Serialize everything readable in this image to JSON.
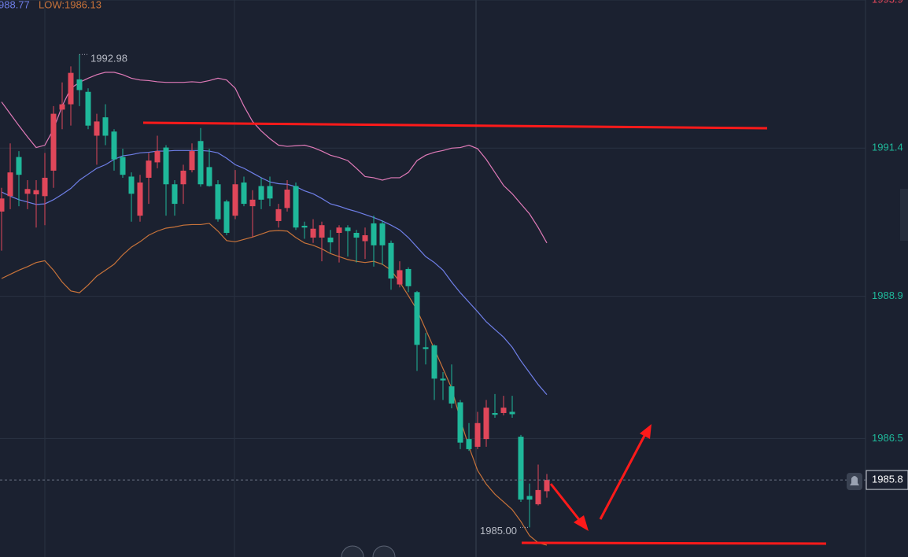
{
  "chart_data": {
    "type": "candlestick",
    "open": [
      1990.33,
      1990.59,
      1991.25,
      1990.63,
      1990.62,
      1990.59,
      1991.02,
      1992.05,
      1992.14,
      1992.56,
      1992.35,
      1991.61,
      1991.92,
      1991.68,
      1991.25,
      1990.92,
      1990.26,
      1990.9,
      1991.16,
      1991.41,
      1990.79,
      1990.79,
      1991.03,
      1991.52,
      1991.08,
      1990.79,
      1990.5,
      1990.26,
      1990.82,
      1990.42,
      1990.76,
      1990.76,
      1990.17,
      1990.39,
      1990.76,
      1990.09,
      1989.89,
      1989.89,
      1989.89,
      1989.97,
      1990.06,
      1989.97,
      1989.83,
      1990.13,
      1990.13,
      1989.8,
      1989.1,
      1989.36,
      1988.97,
      1988.04,
      1988.07,
      1987.51,
      1987.38,
      1987.11,
      1986.49,
      1986.36,
      1986.49,
      1986.93,
      1986.93,
      1986.95,
      1986.53,
      1985.53,
      1985.39,
      1985.61
    ],
    "high": [
      1990.73,
      1991.48,
      1991.35,
      1990.86,
      1990.86,
      1991.32,
      1992.11,
      1992.51,
      1992.78,
      1992.98,
      1992.41,
      1991.98,
      1992.14,
      1991.72,
      1991.39,
      1990.99,
      1990.95,
      1991.32,
      1991.61,
      1991.45,
      1990.86,
      1991.12,
      1991.48,
      1991.74,
      1991.39,
      1990.86,
      1990.53,
      1991.03,
      1990.92,
      1990.69,
      1990.9,
      1990.92,
      1990.46,
      1990.86,
      1990.82,
      1990.16,
      1990.2,
      1990.16,
      1990.02,
      1990.1,
      1990.1,
      1990.02,
      1990.06,
      1990.26,
      1990.18,
      1989.84,
      1989.49,
      1989.39,
      1988.99,
      1988.28,
      1988.09,
      1987.62,
      1987.75,
      1987.15,
      1986.76,
      1986.95,
      1987.15,
      1987.25,
      1987.22,
      1987.22,
      1986.56,
      1985.74,
      1986.06,
      1985.9
    ],
    "low": [
      1989.67,
      1990.37,
      1990.42,
      1990.37,
      1990.06,
      1990.1,
      1990.73,
      1991.72,
      1991.78,
      1992.11,
      1991.72,
      1991.12,
      1991.45,
      1991.02,
      1990.9,
      1990.16,
      1990.16,
      1990.46,
      1991.06,
      1990.26,
      1990.26,
      1990.46,
      1990.99,
      1990.75,
      1990.75,
      1990.16,
      1989.93,
      1990.2,
      1990.42,
      1989.89,
      1990.37,
      1990.42,
      1990.06,
      1990.33,
      1990.02,
      1989.87,
      1989.8,
      1989.49,
      1989.63,
      1989.47,
      1989.57,
      1989.47,
      1989.53,
      1989.4,
      1989.43,
      1989.01,
      1989.05,
      1988.97,
      1987.64,
      1987.75,
      1987.15,
      1987.15,
      1987.01,
      1986.32,
      1986.29,
      1986.32,
      1986.36,
      1986.85,
      1986.89,
      1986.85,
      1985.43,
      1985.0,
      1985.37,
      1985.5
    ],
    "close": [
      1990.55,
      1990.99,
      1990.95,
      1990.71,
      1990.69,
      1990.9,
      1991.98,
      1992.14,
      1992.67,
      1992.38,
      1991.78,
      1991.85,
      1991.61,
      1991.21,
      1990.95,
      1990.63,
      1990.82,
      1991.19,
      1991.35,
      1990.79,
      1990.46,
      1991.02,
      1991.35,
      1990.79,
      1990.76,
      1990.2,
      1989.97,
      1990.79,
      1990.46,
      1990.53,
      1990.53,
      1990.55,
      1990.37,
      1990.7,
      1990.06,
      1990.06,
      1990.04,
      1990.1,
      1989.81,
      1990.06,
      1990.0,
      1989.89,
      1989.93,
      1989.76,
      1989.76,
      1989.2,
      1989.34,
      1989.07,
      1988.08,
      1988.01,
      1987.51,
      1987.48,
      1987.09,
      1986.43,
      1986.32,
      1986.76,
      1987.02,
      1986.9,
      1987.02,
      1986.91,
      1985.47,
      1985.47,
      1985.63,
      1985.8
    ],
    "up_color": "#e0475a",
    "down_color": "#1fb89a",
    "bands": [
      {
        "color": "#e07ab8",
        "values": [
          1992.18,
          1991.98,
          1991.78,
          1991.59,
          1991.41,
          1991.45,
          1991.72,
          1992.11,
          1992.41,
          1992.51,
          1992.58,
          1992.64,
          1992.68,
          1992.68,
          1992.64,
          1992.58,
          1992.55,
          1992.54,
          1992.52,
          1992.51,
          1992.51,
          1992.51,
          1992.52,
          1992.51,
          1992.54,
          1992.58,
          1992.55,
          1992.41,
          1992.11,
          1991.85,
          1991.69,
          1991.56,
          1991.45,
          1991.43,
          1991.44,
          1991.45,
          1991.41,
          1991.35,
          1991.28,
          1991.24,
          1991.19,
          1991.06,
          1990.92,
          1990.9,
          1990.86,
          1990.9,
          1990.9,
          1990.99,
          1991.19,
          1991.28,
          1991.33,
          1991.36,
          1991.4,
          1991.41,
          1991.45,
          1991.39,
          1991.21,
          1990.99,
          1990.77,
          1990.63,
          1990.46,
          1990.29,
          1990.06,
          1989.8
        ]
      },
      {
        "color": "#6f7fe8",
        "values": [
          1990.66,
          1990.59,
          1990.53,
          1990.49,
          1990.45,
          1990.46,
          1990.53,
          1990.62,
          1990.72,
          1990.86,
          1990.96,
          1991.06,
          1991.12,
          1991.21,
          1991.27,
          1991.29,
          1991.32,
          1991.33,
          1991.35,
          1991.35,
          1991.36,
          1991.36,
          1991.36,
          1991.36,
          1991.35,
          1991.32,
          1991.23,
          1991.12,
          1991.06,
          1990.98,
          1990.9,
          1990.83,
          1990.8,
          1990.79,
          1990.75,
          1990.68,
          1990.63,
          1990.55,
          1990.46,
          1990.42,
          1990.37,
          1990.33,
          1990.28,
          1990.23,
          1990.17,
          1990.1,
          1990.02,
          1989.89,
          1989.73,
          1989.57,
          1989.47,
          1989.34,
          1989.14,
          1988.96,
          1988.8,
          1988.64,
          1988.47,
          1988.34,
          1988.21,
          1988.04,
          1987.81,
          1987.61,
          1987.41,
          1987.24
        ]
      },
      {
        "color": "#c8733a",
        "values": [
          1989.2,
          1989.27,
          1989.34,
          1989.4,
          1989.47,
          1989.5,
          1989.34,
          1989.14,
          1988.99,
          1988.96,
          1989.09,
          1989.24,
          1989.34,
          1989.44,
          1989.6,
          1989.73,
          1989.82,
          1989.93,
          1990.0,
          1990.05,
          1990.07,
          1990.1,
          1990.11,
          1990.11,
          1990.13,
          1990.0,
          1989.84,
          1989.82,
          1989.86,
          1989.9,
          1989.95,
          1990.0,
          1990.01,
          1990.0,
          1989.89,
          1989.8,
          1989.76,
          1989.7,
          1989.62,
          1989.57,
          1989.52,
          1989.49,
          1989.47,
          1989.49,
          1989.44,
          1989.34,
          1989.14,
          1988.91,
          1988.67,
          1988.34,
          1988.01,
          1987.68,
          1987.35,
          1986.82,
          1986.36,
          1985.96,
          1985.73,
          1985.56,
          1985.43,
          1985.3,
          1985.1,
          1984.86,
          1984.74,
          1984.7
        ]
      }
    ],
    "indicator_labels": [
      "988.77",
      "LOW:1986.13"
    ],
    "ylim": [
      1984.5,
      1993.9
    ],
    "yticks": [
      1993.9,
      1991.4,
      1988.9,
      1986.5
    ],
    "tick_colors": [
      "#e0475a",
      "#1fb89a",
      "#1fb89a",
      "#1fb89a"
    ],
    "last_price": 1985.8,
    "max_label": 1992.98,
    "min_label": {
      "value": 1985,
      "label": "1985.00"
    },
    "grid": true
  }
}
